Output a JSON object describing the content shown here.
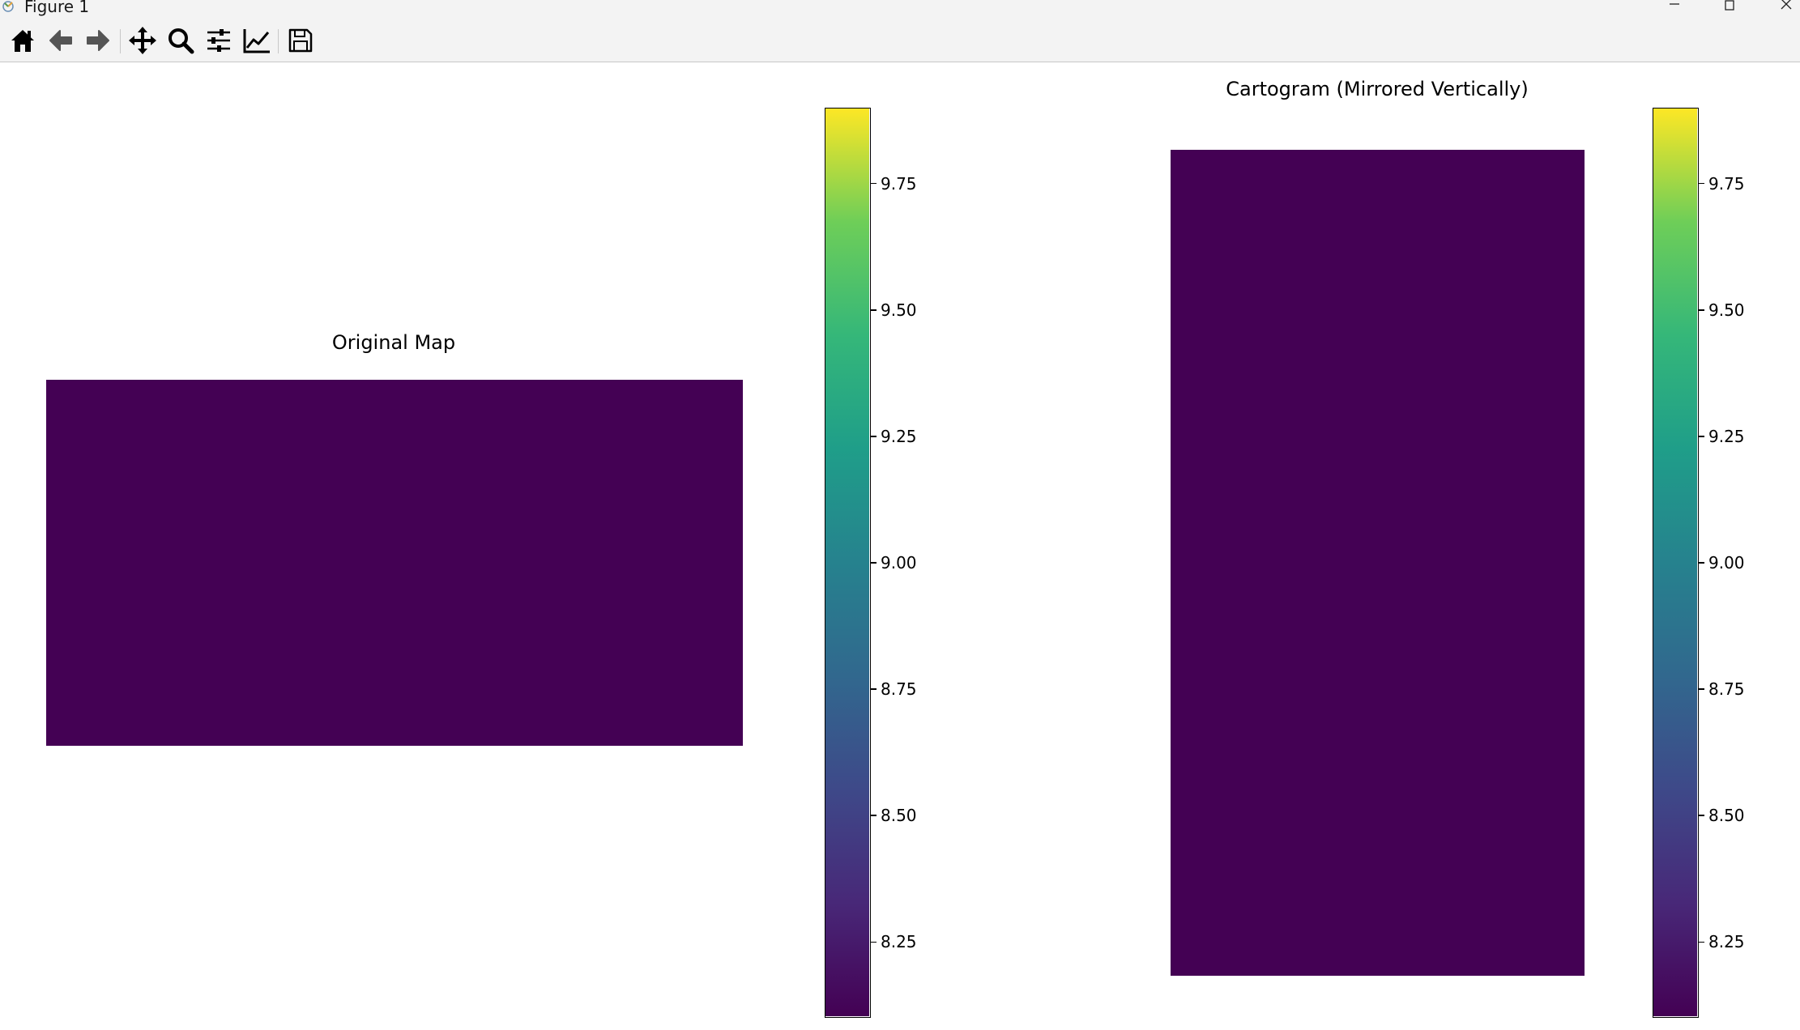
{
  "window": {
    "title": "Figure 1"
  },
  "toolbar": {
    "buttons": [
      {
        "name": "home-button",
        "icon": "home-icon"
      },
      {
        "name": "back-button",
        "icon": "arrow-left-icon"
      },
      {
        "name": "forward-button",
        "icon": "arrow-right-icon"
      },
      {
        "name": "pan-button",
        "icon": "move-icon"
      },
      {
        "name": "zoom-button",
        "icon": "magnifier-icon"
      },
      {
        "name": "subplots-button",
        "icon": "sliders-icon"
      },
      {
        "name": "edit-axes-button",
        "icon": "line-chart-icon"
      },
      {
        "name": "save-button",
        "icon": "floppy-disk-icon"
      }
    ]
  },
  "figure": {
    "colormap": "viridis",
    "colors": {
      "map_fill": "#440154"
    },
    "panels": [
      {
        "title": "Original Map",
        "colorbar": {
          "vmin": 8.1,
          "vmax": 9.9,
          "ticks": [
            "8.25",
            "8.50",
            "8.75",
            "9.00",
            "9.25",
            "9.50",
            "9.75"
          ]
        }
      },
      {
        "title": "Cartogram (Mirrored Vertically)",
        "colorbar": {
          "vmin": 8.1,
          "vmax": 9.9,
          "ticks": [
            "8.25",
            "8.50",
            "8.75",
            "9.00",
            "9.25",
            "9.50",
            "9.75"
          ]
        }
      }
    ]
  }
}
